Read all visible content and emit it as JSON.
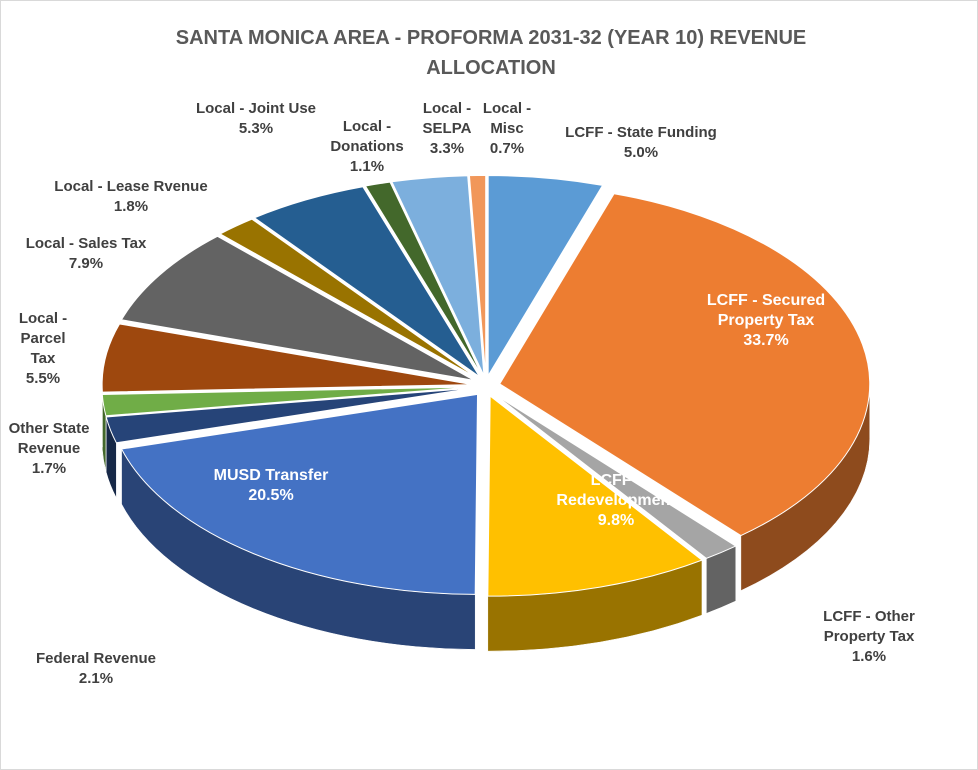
{
  "chart_data": {
    "type": "pie3d",
    "title": "SANTA MONICA AREA - PROFORMA 2031-32 (YEAR 10) REVENUE ALLOCATION",
    "categories": [
      "LCFF - State Funding",
      "LCFF - Secured Property Tax",
      "LCFF - Other Property Tax",
      "LCFF - Redevelopment",
      "MUSD Transfer",
      "Federal Revenue",
      "Other State Revenue",
      "Local - Parcel Tax",
      "Local - Sales Tax",
      "Local - Lease Rvenue",
      "Local - Joint Use",
      "Local - Donations",
      "Local - SELPA",
      "Local - Misc"
    ],
    "values": [
      5.0,
      33.7,
      1.6,
      9.8,
      20.5,
      2.1,
      1.7,
      5.5,
      7.9,
      1.8,
      5.3,
      1.1,
      3.3,
      0.7
    ],
    "value_labels": [
      "5.0%",
      "33.7%",
      "1.6%",
      "9.8%",
      "20.5%",
      "2.1%",
      "1.7%",
      "5.5%",
      "7.9%",
      "1.8%",
      "5.3%",
      "1.1%",
      "3.3%",
      "0.7%"
    ],
    "colors": [
      "#5b9bd5",
      "#ed7d31",
      "#a5a5a5",
      "#ffc000",
      "#4472c4",
      "#264478",
      "#70ad47",
      "#9e480e",
      "#636363",
      "#997300",
      "#255e91",
      "#43682b",
      "#7cafdd",
      "#f1975a"
    ]
  }
}
